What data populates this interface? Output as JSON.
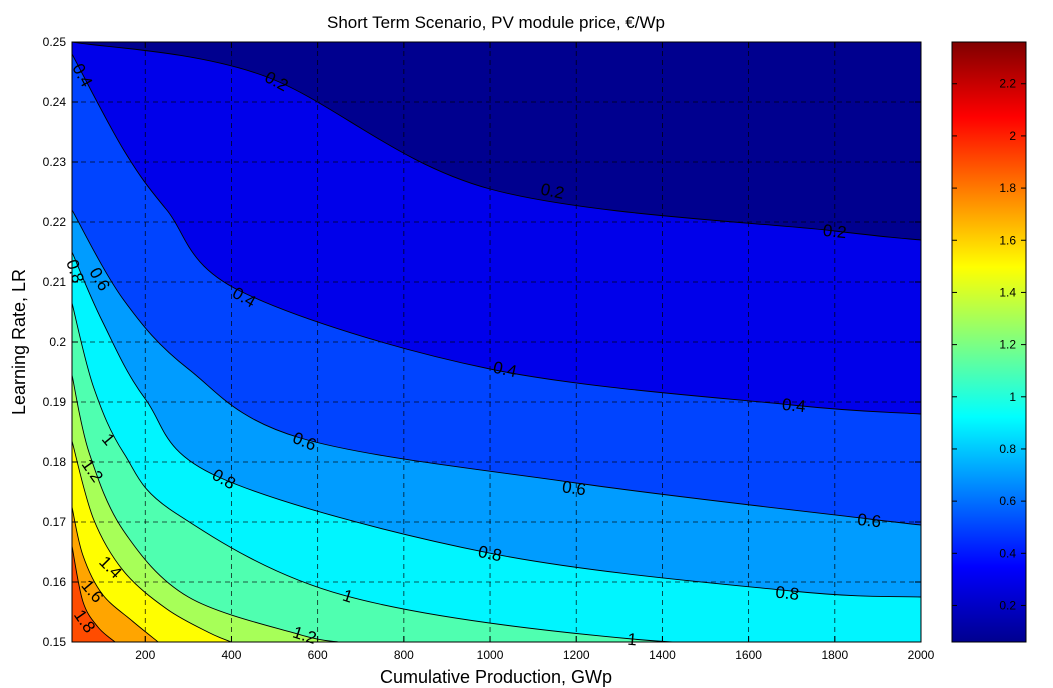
{
  "chart_data": {
    "type": "heatmap",
    "subtype": "filled-contour",
    "title": "Short Term Scenario, PV module price, €/Wp",
    "xlabel": "Cumulative Production, GWp",
    "ylabel": "Learning Rate, LR",
    "xlim": [
      30,
      2000
    ],
    "ylim": [
      0.15,
      0.25
    ],
    "x_ticks": [
      200,
      400,
      600,
      800,
      1000,
      1200,
      1400,
      1600,
      1800,
      2000
    ],
    "y_ticks": [
      0.15,
      0.16,
      0.17,
      0.18,
      0.19,
      0.2,
      0.21,
      0.22,
      0.23,
      0.24,
      0.25
    ],
    "x_tick_labels": [
      "200",
      "400",
      "600",
      "800",
      "1000",
      "1200",
      "1400",
      "1600",
      "1800",
      "2000"
    ],
    "y_tick_labels": [
      "0.15",
      "0.16",
      "0.17",
      "0.18",
      "0.19",
      "0.2",
      "0.21",
      "0.22",
      "0.23",
      "0.24",
      "0.25"
    ],
    "grid": true,
    "colormap": "jet",
    "color_range": [
      0.06,
      2.36
    ],
    "colorbar_ticks": [
      0.2,
      0.4,
      0.6,
      0.8,
      1,
      1.2,
      1.4,
      1.6,
      1.8,
      2,
      2.2
    ],
    "colorbar_tick_labels": [
      "0.2",
      "0.4",
      "0.6",
      "0.8",
      "1",
      "1.2",
      "1.4",
      "1.6",
      "1.8",
      "2",
      "2.2"
    ],
    "contour_levels": [
      0.2,
      0.4,
      0.6,
      0.8,
      1,
      1.2,
      1.4,
      1.6,
      1.8
    ],
    "contour_lines": [
      {
        "level": 0.2,
        "points": [
          [
            30,
            0.25
          ],
          [
            470,
            0.2445
          ],
          [
            1000,
            0.2255
          ],
          [
            1800,
            0.2185
          ],
          [
            2000,
            0.217
          ]
        ]
      },
      {
        "level": 0.4,
        "points": [
          [
            30,
            0.248
          ],
          [
            150,
            0.232
          ],
          [
            250,
            0.222
          ],
          [
            420,
            0.2085
          ],
          [
            1000,
            0.1955
          ],
          [
            1700,
            0.1895
          ],
          [
            2000,
            0.188
          ]
        ]
      },
      {
        "level": 0.6,
        "points": [
          [
            30,
            0.222
          ],
          [
            150,
            0.207
          ],
          [
            300,
            0.1955
          ],
          [
            560,
            0.184
          ],
          [
            1200,
            0.1765
          ],
          [
            1880,
            0.1705
          ],
          [
            2000,
            0.1695
          ]
        ]
      },
      {
        "level": 0.8,
        "points": [
          [
            30,
            0.215
          ],
          [
            100,
            0.2035
          ],
          [
            200,
            0.1905
          ],
          [
            370,
            0.1775
          ],
          [
            1000,
            0.1648
          ],
          [
            1700,
            0.1585
          ],
          [
            2000,
            0.1575
          ]
        ]
      },
      {
        "level": 1,
        "points": [
          [
            30,
            0.2065
          ],
          [
            80,
            0.1925
          ],
          [
            150,
            0.1815
          ],
          [
            270,
            0.1715
          ],
          [
            660,
            0.1578
          ],
          [
            1330,
            0.1505
          ],
          [
            2000,
            0.149
          ]
        ]
      },
      {
        "level": 1.2,
        "points": [
          [
            30,
            0.1945
          ],
          [
            70,
            0.1815
          ],
          [
            150,
            0.1685
          ],
          [
            300,
            0.1575
          ],
          [
            560,
            0.1512
          ],
          [
            650,
            0.15
          ]
        ]
      },
      {
        "level": 1.4,
        "points": [
          [
            30,
            0.1835
          ],
          [
            80,
            0.1705
          ],
          [
            150,
            0.1618
          ],
          [
            250,
            0.1555
          ],
          [
            350,
            0.1515
          ],
          [
            400,
            0.15
          ]
        ]
      },
      {
        "level": 1.6,
        "points": [
          [
            30,
            0.1725
          ],
          [
            55,
            0.1645
          ],
          [
            100,
            0.158
          ],
          [
            170,
            0.1535
          ],
          [
            230,
            0.15
          ]
        ]
      },
      {
        "level": 1.8,
        "points": [
          [
            30,
            0.166
          ],
          [
            55,
            0.1568
          ],
          [
            90,
            0.1525
          ],
          [
            130,
            0.15
          ]
        ]
      }
    ],
    "inline_labels": [
      {
        "text": "0.4",
        "x": 55,
        "y": 0.2445,
        "angle": 62
      },
      {
        "text": "0.2",
        "x": 505,
        "y": 0.2435,
        "angle": 28
      },
      {
        "text": "0.2",
        "x": 1145,
        "y": 0.2252,
        "angle": 12
      },
      {
        "text": "0.2",
        "x": 1800,
        "y": 0.2185,
        "angle": 6
      },
      {
        "text": "0.6",
        "x": 95,
        "y": 0.2105,
        "angle": 60
      },
      {
        "text": "0.8",
        "x": 38,
        "y": 0.2118,
        "angle": 72
      },
      {
        "text": "0.4",
        "x": 430,
        "y": 0.2075,
        "angle": 30
      },
      {
        "text": "0.4",
        "x": 1035,
        "y": 0.1955,
        "angle": 12
      },
      {
        "text": "0.4",
        "x": 1705,
        "y": 0.1895,
        "angle": 6
      },
      {
        "text": "0.6",
        "x": 570,
        "y": 0.1835,
        "angle": 22
      },
      {
        "text": "0.6",
        "x": 1195,
        "y": 0.1757,
        "angle": 8
      },
      {
        "text": "0.6",
        "x": 1880,
        "y": 0.1703,
        "angle": 6
      },
      {
        "text": "0.8",
        "x": 383,
        "y": 0.1772,
        "angle": 30
      },
      {
        "text": "0.8",
        "x": 1000,
        "y": 0.1648,
        "angle": 12
      },
      {
        "text": "0.8",
        "x": 1690,
        "y": 0.1582,
        "angle": 6
      },
      {
        "text": "1",
        "x": 115,
        "y": 0.1838,
        "angle": 50
      },
      {
        "text": "1.2",
        "x": 78,
        "y": 0.1786,
        "angle": 55
      },
      {
        "text": "1",
        "x": 670,
        "y": 0.1577,
        "angle": 18
      },
      {
        "text": "1",
        "x": 1330,
        "y": 0.1505,
        "angle": 5
      },
      {
        "text": "1.2",
        "x": 570,
        "y": 0.1512,
        "angle": 18
      },
      {
        "text": "1.4",
        "x": 120,
        "y": 0.1625,
        "angle": 45
      },
      {
        "text": "1.6",
        "x": 78,
        "y": 0.1585,
        "angle": 50
      },
      {
        "text": "1.8",
        "x": 60,
        "y": 0.1535,
        "angle": 55
      }
    ]
  }
}
